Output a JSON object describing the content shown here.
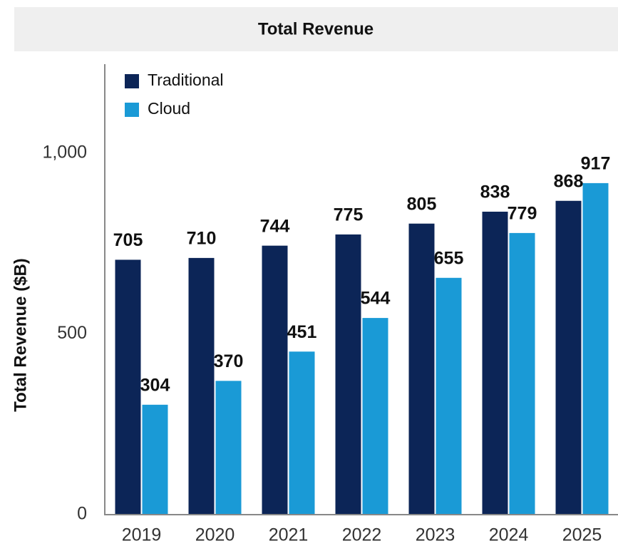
{
  "chart_data": {
    "type": "bar",
    "title": "Total Revenue",
    "y_label": "Total Revenue ($B)",
    "categories": [
      "2019",
      "2020",
      "2021",
      "2022",
      "2023",
      "2024",
      "2025"
    ],
    "series": [
      {
        "name": "Traditional",
        "color": "#0c2557",
        "values": [
          705,
          710,
          744,
          775,
          805,
          838,
          868
        ]
      },
      {
        "name": "Cloud",
        "color": "#1a9ad6",
        "values": [
          304,
          370,
          451,
          544,
          655,
          779,
          917
        ]
      }
    ],
    "ylim": [
      0,
      1250
    ],
    "yticks": [
      0,
      500,
      {
        "value": 1000,
        "label": "1,000"
      }
    ],
    "grid": false,
    "legend": "upper left"
  }
}
